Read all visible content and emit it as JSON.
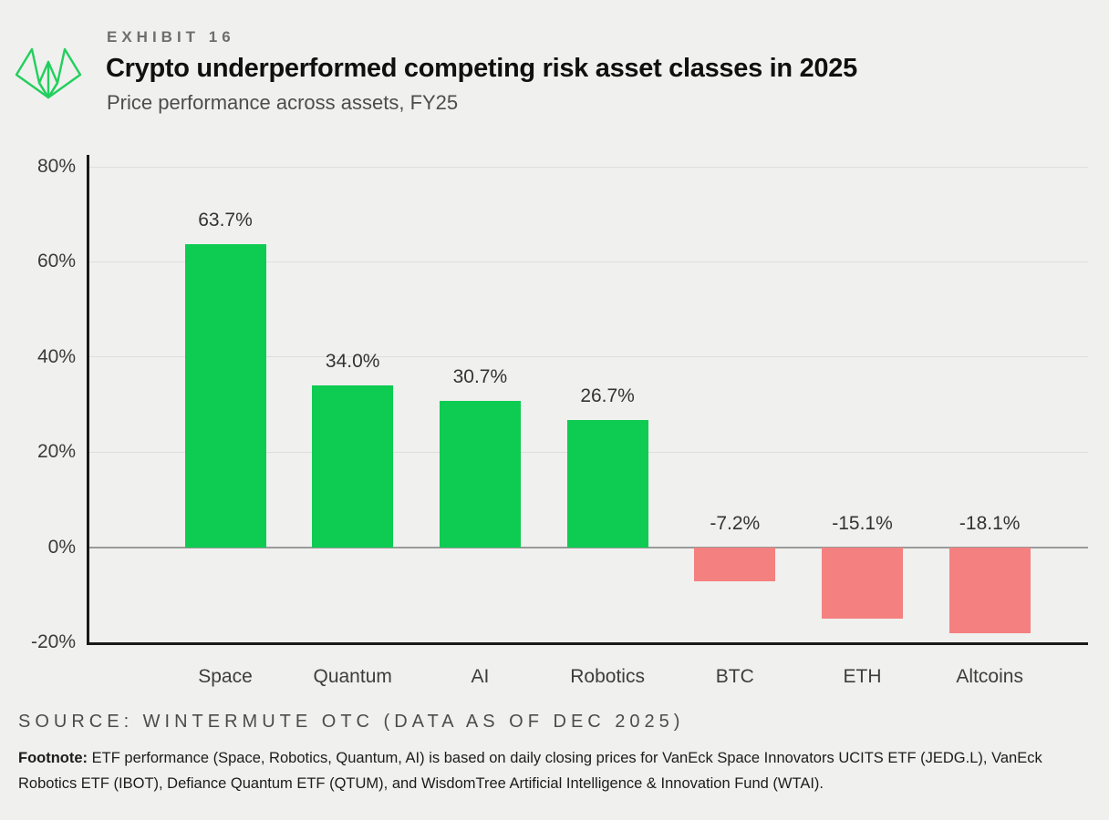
{
  "exhibit_label": "EXHIBIT 16",
  "title": "Crypto underperformed competing risk asset classes in 2025",
  "subtitle": "Price performance across assets, FY25",
  "logo": {
    "icon": "wintermute-logo",
    "color": "#22cf5d"
  },
  "colors": {
    "background": "#f0f0ee",
    "positive_bar": "#0ecb52",
    "negative_bar": "#f48080",
    "axis_line": "#1a1a1a",
    "gridline": "#dededc",
    "zero_line": "#9a9a9a"
  },
  "chart_data": {
    "type": "bar",
    "title": "Crypto underperformed competing risk asset classes in 2025",
    "subtitle": "Price performance across assets, FY25",
    "categories": [
      "Space",
      "Quantum",
      "AI",
      "Robotics",
      "BTC",
      "ETH",
      "Altcoins"
    ],
    "values": [
      63.7,
      34.0,
      30.7,
      26.7,
      -7.2,
      -15.1,
      -18.1
    ],
    "value_labels": [
      "63.7%",
      "34.0%",
      "30.7%",
      "26.7%",
      "-7.2%",
      "-15.1%",
      "-18.1%"
    ],
    "xlabel": "",
    "ylabel": "",
    "y_ticks": [
      80,
      60,
      40,
      20,
      0,
      -20
    ],
    "y_tick_labels": [
      "80%",
      "60%",
      "40%",
      "20%",
      "0%",
      "-20%"
    ],
    "ylim": [
      -20,
      82.5
    ],
    "grid": true,
    "legend": false
  },
  "source_line": "SOURCE: WINTERMUTE OTC (DATA AS OF DEC 2025)",
  "footnote": {
    "label": "Footnote:",
    "text": " ETF performance (Space, Robotics, Quantum, AI) is based on daily closing prices for VanEck Space Innovators UCITS ETF (JEDG.L), VanEck Robotics ETF (IBOT), Defiance Quantum ETF (QTUM), and WisdomTree Artificial Intelligence & Innovation Fund (WTAI)."
  }
}
